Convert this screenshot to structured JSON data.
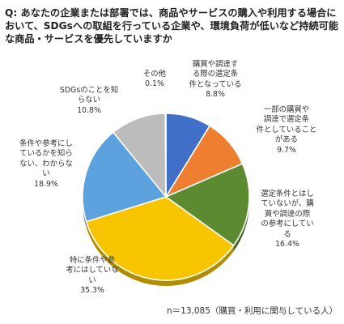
{
  "question": "Q: あなたの企業または部署では、商品やサービスの購入や利用する場合において、SDGsへの取組を行っている企業や、環境負荷が低いなど持続可能な商品・サービスを優先していますか",
  "note": "n＝13,085（購買・利用に関与している人）",
  "chart_data": {
    "type": "pie",
    "start": "top, clockwise",
    "slices": [
      {
        "label": "購買や調達する際の選定条件となっている",
        "display": "購買や調達す\nる際の選定条\n件となっている",
        "value": 8.8,
        "value_label": "8.8%",
        "color": "#3f6fc7"
      },
      {
        "label": "一部の購買や調達で選定条件としていることがある",
        "display": "一部の購買や\n調達で選定条\n件としていること\nがある",
        "value": 9.7,
        "value_label": "9.7%",
        "color": "#ee7e30"
      },
      {
        "label": "選定条件とはしていないが、購買や調達の際の参考にしている",
        "display": "選定条件とはし\nていないが、購\n買や調達の際\nの参考にしてい\nる",
        "value": 16.4,
        "value_label": "16.4%",
        "color": "#5b8a31"
      },
      {
        "label": "特に条件や参考にはしていない",
        "display": "特に条件や参\n考にはしていな\nい",
        "value": 35.3,
        "value_label": "35.3%",
        "color": "#f7c400"
      },
      {
        "label": "条件や参考にしているかを知らない、わからない",
        "display": "条件や参考にし\nているかを知ら\nない、わからな\nい",
        "value": 18.9,
        "value_label": "18.9%",
        "color": "#5ba2df"
      },
      {
        "label": "SDGsのことを知らない",
        "display": "SDGsのことを知\nらない",
        "value": 10.8,
        "value_label": "10.8%",
        "color": "#bcbcbc"
      },
      {
        "label": "その他",
        "display": "その他",
        "value": 0.1,
        "value_label": "0.1%",
        "color": "#1f3864"
      }
    ]
  }
}
